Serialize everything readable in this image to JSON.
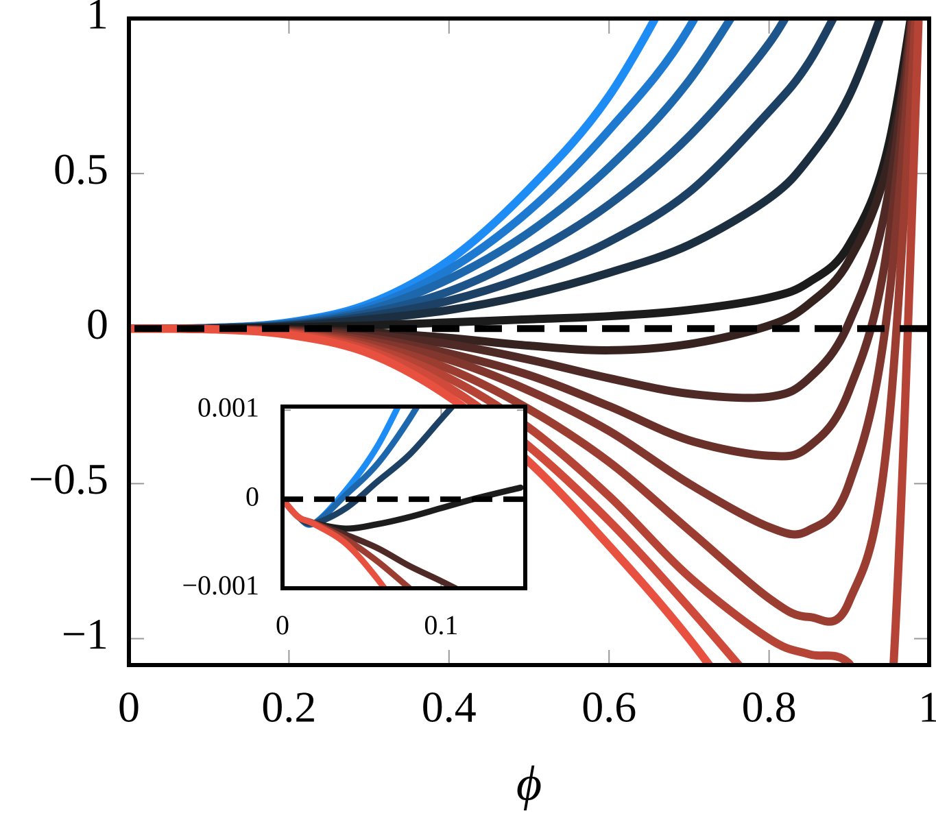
{
  "chart_data": [
    {
      "type": "line",
      "x_label": "ϕ",
      "x": [
        0,
        0.1,
        0.2,
        0.3,
        0.4,
        0.5,
        0.6,
        0.7,
        0.8,
        0.85,
        0.9,
        0.95,
        1
      ],
      "xlim": [
        0,
        1
      ],
      "ylim": [
        -1.085,
        1
      ],
      "xticks": [
        0,
        0.2,
        0.4,
        0.6,
        0.8,
        1
      ],
      "yticks": [
        {
          "value": -1,
          "label": "−1"
        },
        {
          "value": -0.5,
          "label": "−0.5"
        },
        0,
        0.5,
        1
      ],
      "hline": 0,
      "series": [
        {
          "color": "#1e8cf5",
          "values": [
            0,
            0.002,
            0.02,
            0.08,
            0.22,
            0.45,
            0.75,
            1.2,
            null,
            null,
            null,
            null,
            null
          ]
        },
        {
          "color": "#1e79d1",
          "values": [
            0,
            0.002,
            0.018,
            0.07,
            0.19,
            0.38,
            0.64,
            0.97,
            1.5,
            null,
            null,
            null,
            null
          ]
        },
        {
          "color": "#1d67ad",
          "values": [
            0,
            0.002,
            0.015,
            0.06,
            0.16,
            0.31,
            0.52,
            0.8,
            1.2,
            null,
            null,
            null,
            null
          ]
        },
        {
          "color": "#1d5489",
          "values": [
            0,
            0.001,
            0.012,
            0.05,
            0.12,
            0.24,
            0.4,
            0.62,
            0.92,
            1.15,
            null,
            null,
            null
          ]
        },
        {
          "color": "#1d4164",
          "values": [
            0,
            0.001,
            0.01,
            0.04,
            0.09,
            0.17,
            0.28,
            0.44,
            0.7,
            0.86,
            1.1,
            null,
            null
          ]
        },
        {
          "color": "#1c2f40",
          "values": [
            0,
            0.001,
            0.008,
            0.03,
            0.06,
            0.11,
            0.18,
            0.27,
            0.42,
            0.55,
            0.75,
            1.08,
            null
          ]
        },
        {
          "color": "#1c1c1c",
          "values": [
            0,
            0,
            0.004,
            0.01,
            0.02,
            0.03,
            0.04,
            0.06,
            0.1,
            0.15,
            0.27,
            0.6,
            1.4
          ]
        },
        {
          "color": "#362320",
          "values": [
            0,
            -0.001,
            -0.004,
            -0.012,
            -0.03,
            -0.055,
            -0.07,
            -0.05,
            0.01,
            0.08,
            0.22,
            0.55,
            1.3
          ]
        },
        {
          "color": "#4f2925",
          "values": [
            0,
            -0.001,
            -0.006,
            -0.02,
            -0.05,
            -0.1,
            -0.16,
            -0.21,
            -0.22,
            -0.16,
            0.02,
            0.45,
            1.5
          ]
        },
        {
          "color": "#693029",
          "values": [
            0,
            -0.001,
            -0.008,
            -0.03,
            -0.08,
            -0.15,
            -0.25,
            -0.36,
            -0.41,
            -0.38,
            -0.2,
            0.3,
            1.6
          ]
        },
        {
          "color": "#82372e",
          "values": [
            0,
            -0.001,
            -0.01,
            -0.04,
            -0.1,
            -0.2,
            -0.33,
            -0.5,
            -0.64,
            -0.65,
            -0.5,
            0.1,
            1.7
          ]
        },
        {
          "color": "#9c3d32",
          "values": [
            0,
            -0.002,
            -0.012,
            -0.05,
            -0.13,
            -0.26,
            -0.43,
            -0.65,
            -0.87,
            -0.93,
            -0.88,
            -0.3,
            1.8
          ]
        },
        {
          "color": "#b54436",
          "values": [
            0,
            -0.002,
            -0.014,
            -0.06,
            -0.16,
            -0.32,
            -0.54,
            -0.8,
            -1.0,
            -1.05,
            -1.08,
            -1.3,
            2
          ]
        },
        {
          "color": "#cf4a3b",
          "values": [
            0,
            -0.002,
            -0.016,
            -0.07,
            -0.19,
            -0.38,
            -0.62,
            -0.9,
            -1.2,
            null,
            null,
            null,
            null
          ]
        },
        {
          "color": "#e8513f",
          "values": [
            0,
            -0.002,
            -0.02,
            -0.08,
            -0.22,
            -0.43,
            -0.7,
            -1.0,
            -1.35,
            null,
            null,
            null,
            null
          ]
        }
      ]
    },
    {
      "type": "line",
      "x": [
        0,
        0.01,
        0.02,
        0.04,
        0.06,
        0.08,
        0.1,
        0.12,
        0.15
      ],
      "xlim": [
        0,
        0.153
      ],
      "ylim": [
        -0.001,
        0.00104
      ],
      "xticks": [
        0,
        0.1
      ],
      "yticks": [
        {
          "value": -0.001,
          "label": "−0.001"
        },
        0,
        0.001
      ],
      "hline": 0,
      "series": [
        {
          "color": "#1e8cf5",
          "values": [
            0,
            -0.0002,
            -0.00027,
            0.0001,
            0.0006,
            0.0013,
            null,
            null,
            null
          ]
        },
        {
          "color": "#1d67ad",
          "values": [
            0,
            -0.0002,
            -0.00027,
            5e-05,
            0.0004,
            0.0009,
            0.0015,
            null,
            null
          ]
        },
        {
          "color": "#1d4164",
          "values": [
            0,
            -0.0002,
            -0.00027,
            -0.0001,
            0.0002,
            0.0005,
            0.0009,
            0.0013,
            null
          ]
        },
        {
          "color": "#1c1c1c",
          "values": [
            0,
            -0.0002,
            -0.00027,
            -0.00033,
            -0.00028,
            -0.0002,
            -0.0001,
            0,
            0.00013
          ]
        },
        {
          "color": "#4f2925",
          "values": [
            0,
            -0.0002,
            -0.00027,
            -0.0004,
            -0.00055,
            -0.00075,
            -0.00092,
            -0.0011,
            null
          ]
        },
        {
          "color": "#9c3d32",
          "values": [
            0,
            -0.0002,
            -0.00027,
            -0.00045,
            -0.0007,
            -0.001,
            -0.0013,
            null,
            null
          ]
        },
        {
          "color": "#e8513f",
          "values": [
            0,
            -0.0002,
            -0.00028,
            -0.0005,
            -0.0009,
            -0.0014,
            null,
            null,
            null
          ]
        }
      ]
    }
  ]
}
